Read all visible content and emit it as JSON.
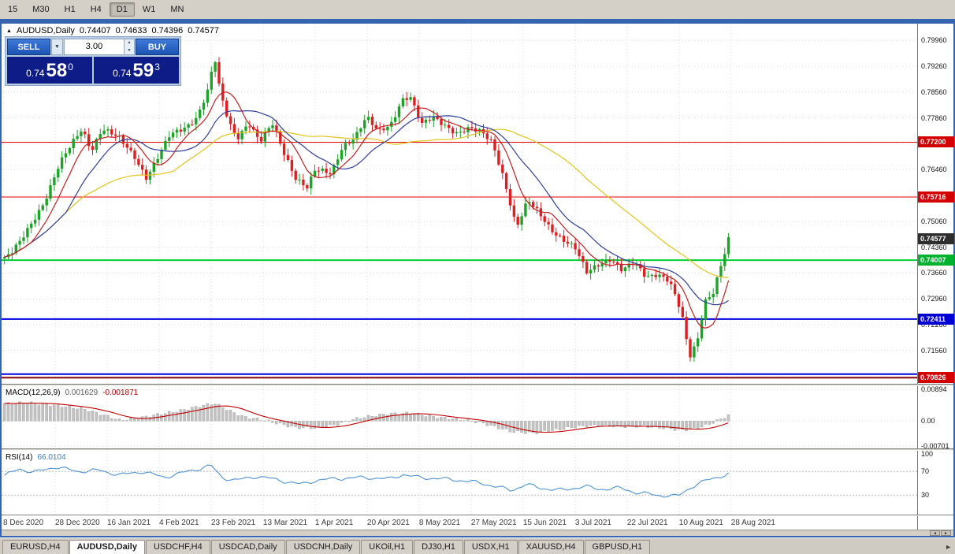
{
  "colors": {
    "up": "#1ca427",
    "down": "#dc2020",
    "ma_fast": "#c81e1e",
    "ma_mid": "#2f3f9f",
    "ma_slow": "#e3c51c",
    "macd_hist": "#c2c2c2",
    "macd_hist_edge": "#a6a6a6",
    "macd_signal": "#c00000",
    "rsi_line": "#4f93d1",
    "grid": "#dadada",
    "window_border": "#3565b0"
  },
  "toolbar": {
    "timeframes": [
      "15",
      "M30",
      "H1",
      "H4",
      "D1",
      "W1",
      "MN"
    ],
    "active": "D1"
  },
  "chart_header": {
    "symbol": "AUDUSD,Daily",
    "open": "0.74407",
    "high": "0.74633",
    "low": "0.74396",
    "close": "0.74577"
  },
  "trade_panel": {
    "sell_label": "SELL",
    "buy_label": "BUY",
    "volume": "3.00",
    "sell_price": {
      "prefix": "0.74",
      "big": "58",
      "sup": "0"
    },
    "buy_price": {
      "prefix": "0.74",
      "big": "59",
      "sup": "3"
    }
  },
  "icons": {
    "dropdown": "▼",
    "spin_up": "▲",
    "spin_down": "▼",
    "scroll_left": "◄",
    "scroll_right": "►",
    "tab_scroll": "►",
    "marker": "▲"
  },
  "price_axis": {
    "ticks": [
      "0.79960",
      "0.79260",
      "0.78560",
      "0.77860",
      "0.77160",
      "0.76460",
      "0.75760",
      "0.75060",
      "0.74360",
      "0.73660",
      "0.72960",
      "0.72260",
      "0.71560",
      "0.70860"
    ],
    "badges": [
      {
        "label": "0.77200",
        "price": 0.772,
        "bg": "#d40000"
      },
      {
        "label": "0.75716",
        "price": 0.75716,
        "bg": "#d40000"
      },
      {
        "label": "0.74577",
        "price": 0.74577,
        "bg": "#2e2e2e"
      },
      {
        "label": "0.74007",
        "price": 0.74007,
        "bg": "#00b22d"
      },
      {
        "label": "0.72411",
        "price": 0.72411,
        "bg": "#0000d4"
      },
      {
        "label": "0.70826",
        "price": 0.70826,
        "bg": "#d40000"
      }
    ]
  },
  "levels": [
    {
      "price": 0.772,
      "color": "#e00000",
      "width": 1
    },
    {
      "price": 0.75716,
      "color": "#e00000",
      "width": 1
    },
    {
      "price": 0.74007,
      "color": "#00cc33",
      "width": 2
    },
    {
      "price": 0.72411,
      "color": "#0000e0",
      "width": 2
    },
    {
      "price": 0.7092,
      "color": "#0000e0",
      "width": 2
    },
    {
      "price": 0.70826,
      "color": "#8b0000",
      "width": 2
    }
  ],
  "dates": [
    "8 Dec 2020",
    "28 Dec 2020",
    "16 Jan 2021",
    "4 Feb 2021",
    "23 Feb 2021",
    "13 Mar 2021",
    "1 Apr 2021",
    "20 Apr 2021",
    "8 May 2021",
    "27 May 2021",
    "15 Jun 2021",
    "3 Jul 2021",
    "22 Jul 2021",
    "10 Aug 2021",
    "28 Aug 2021"
  ],
  "macd": {
    "label": "MACD(12,26,9)",
    "value_main": "0.001629",
    "value_signal": "-0.001871",
    "axis_labels": [
      {
        "text": "0.00894",
        "value": 0.00894
      },
      {
        "text": "0.00",
        "value": 0
      },
      {
        "text": "-0.00701",
        "value": -0.00701
      }
    ]
  },
  "rsi": {
    "label": "RSI(14)",
    "value": "66.0104",
    "axis_labels": [
      {
        "text": "100",
        "value": 100
      },
      {
        "text": "70",
        "value": 70
      },
      {
        "text": "30",
        "value": 30
      }
    ],
    "levels": [
      70,
      30
    ]
  },
  "tabs": [
    {
      "label": "EURUSD,H4",
      "active": false
    },
    {
      "label": "AUDUSD,Daily",
      "active": true
    },
    {
      "label": "USDCHF,H4",
      "active": false
    },
    {
      "label": "USDCAD,Daily",
      "active": false
    },
    {
      "label": "USDCNH,Daily",
      "active": false
    },
    {
      "label": "UKOil,H1",
      "active": false
    },
    {
      "label": "DJ30,H1",
      "active": false
    },
    {
      "label": "USDX,H1",
      "active": false
    },
    {
      "label": "XAUUSD,H4",
      "active": false
    },
    {
      "label": "GBPUSD,H1",
      "active": false
    }
  ],
  "chart_data": {
    "type": "candlestick",
    "symbol": "AUDUSD",
    "timeframe": "Daily",
    "visible_price_range": [
      0.7066,
      0.8041
    ],
    "candle_count": 190,
    "data_width_frac": 0.795,
    "macd_range": [
      -0.0077,
      0.0098
    ],
    "rsi_range": [
      -3,
      105
    ],
    "price_path": [
      [
        0.0,
        0.7405
      ],
      [
        0.01,
        0.742
      ],
      [
        0.022,
        0.745
      ],
      [
        0.04,
        0.751
      ],
      [
        0.055,
        0.756
      ],
      [
        0.076,
        0.766
      ],
      [
        0.095,
        0.772
      ],
      [
        0.107,
        0.7756
      ],
      [
        0.12,
        0.77
      ],
      [
        0.135,
        0.7758
      ],
      [
        0.158,
        0.773
      ],
      [
        0.18,
        0.768
      ],
      [
        0.196,
        0.7626
      ],
      [
        0.212,
        0.768
      ],
      [
        0.228,
        0.7736
      ],
      [
        0.25,
        0.776
      ],
      [
        0.266,
        0.779
      ],
      [
        0.282,
        0.7868
      ],
      [
        0.29,
        0.7952
      ],
      [
        0.298,
        0.785
      ],
      [
        0.31,
        0.7772
      ],
      [
        0.321,
        0.773
      ],
      [
        0.337,
        0.7776
      ],
      [
        0.353,
        0.7722
      ],
      [
        0.37,
        0.7768
      ],
      [
        0.386,
        0.769
      ],
      [
        0.402,
        0.7626
      ],
      [
        0.418,
        0.76
      ],
      [
        0.429,
        0.7645
      ],
      [
        0.451,
        0.7632
      ],
      [
        0.467,
        0.771
      ],
      [
        0.484,
        0.7736
      ],
      [
        0.5,
        0.7788
      ],
      [
        0.516,
        0.7746
      ],
      [
        0.533,
        0.7766
      ],
      [
        0.549,
        0.7838
      ],
      [
        0.56,
        0.7846
      ],
      [
        0.576,
        0.7766
      ],
      [
        0.592,
        0.7786
      ],
      [
        0.609,
        0.7766
      ],
      [
        0.625,
        0.7746
      ],
      [
        0.641,
        0.7756
      ],
      [
        0.658,
        0.7746
      ],
      [
        0.674,
        0.772
      ],
      [
        0.69,
        0.7622
      ],
      [
        0.707,
        0.7488
      ],
      [
        0.723,
        0.756
      ],
      [
        0.739,
        0.7526
      ],
      [
        0.755,
        0.7486
      ],
      [
        0.772,
        0.7456
      ],
      [
        0.788,
        0.7432
      ],
      [
        0.804,
        0.7366
      ],
      [
        0.821,
        0.7392
      ],
      [
        0.837,
        0.7406
      ],
      [
        0.853,
        0.7372
      ],
      [
        0.87,
        0.7392
      ],
      [
        0.886,
        0.7356
      ],
      [
        0.902,
        0.7366
      ],
      [
        0.918,
        0.7346
      ],
      [
        0.935,
        0.7256
      ],
      [
        0.946,
        0.7136
      ],
      [
        0.957,
        0.7182
      ],
      [
        0.967,
        0.7292
      ],
      [
        0.978,
        0.7312
      ],
      [
        0.989,
        0.7382
      ],
      [
        1.0,
        0.7455
      ]
    ],
    "macd_hist_path": [
      [
        0.0,
        0.0048
      ],
      [
        0.03,
        0.0052
      ],
      [
        0.07,
        0.0044
      ],
      [
        0.11,
        0.0034
      ],
      [
        0.145,
        0.0012
      ],
      [
        0.16,
        0.0002
      ],
      [
        0.19,
        0.001
      ],
      [
        0.21,
        0.0018
      ],
      [
        0.24,
        0.0028
      ],
      [
        0.27,
        0.0042
      ],
      [
        0.29,
        0.005
      ],
      [
        0.31,
        0.003
      ],
      [
        0.33,
        0.0012
      ],
      [
        0.36,
        0.0002
      ],
      [
        0.38,
        -0.0008
      ],
      [
        0.4,
        -0.0018
      ],
      [
        0.43,
        -0.002
      ],
      [
        0.46,
        -0.001
      ],
      [
        0.48,
        0.0004
      ],
      [
        0.5,
        0.0012
      ],
      [
        0.53,
        0.002
      ],
      [
        0.56,
        0.0022
      ],
      [
        0.58,
        0.0016
      ],
      [
        0.6,
        0.001
      ],
      [
        0.62,
        0.0006
      ],
      [
        0.64,
        0.0002
      ],
      [
        0.66,
        -0.0006
      ],
      [
        0.68,
        -0.0018
      ],
      [
        0.7,
        -0.003
      ],
      [
        0.73,
        -0.0034
      ],
      [
        0.76,
        -0.0026
      ],
      [
        0.79,
        -0.0016
      ],
      [
        0.82,
        -0.0012
      ],
      [
        0.85,
        -0.0016
      ],
      [
        0.88,
        -0.0014
      ],
      [
        0.91,
        -0.002
      ],
      [
        0.935,
        -0.0026
      ],
      [
        0.955,
        -0.0022
      ],
      [
        0.975,
        -0.0008
      ],
      [
        1.0,
        0.0016
      ]
    ],
    "rsi_path": [
      [
        0.0,
        62
      ],
      [
        0.02,
        75
      ],
      [
        0.04,
        68
      ],
      [
        0.07,
        78
      ],
      [
        0.1,
        70
      ],
      [
        0.13,
        72
      ],
      [
        0.16,
        64
      ],
      [
        0.19,
        70
      ],
      [
        0.22,
        60
      ],
      [
        0.26,
        72
      ],
      [
        0.285,
        80
      ],
      [
        0.3,
        60
      ],
      [
        0.32,
        55
      ],
      [
        0.35,
        62
      ],
      [
        0.38,
        55
      ],
      [
        0.41,
        48
      ],
      [
        0.43,
        55
      ],
      [
        0.46,
        58
      ],
      [
        0.5,
        60
      ],
      [
        0.53,
        57
      ],
      [
        0.55,
        65
      ],
      [
        0.57,
        60
      ],
      [
        0.6,
        58
      ],
      [
        0.63,
        55
      ],
      [
        0.66,
        50
      ],
      [
        0.7,
        38
      ],
      [
        0.72,
        48
      ],
      [
        0.74,
        42
      ],
      [
        0.77,
        38
      ],
      [
        0.8,
        45
      ],
      [
        0.82,
        40
      ],
      [
        0.85,
        42
      ],
      [
        0.87,
        35
      ],
      [
        0.9,
        30
      ],
      [
        0.93,
        28
      ],
      [
        0.95,
        45
      ],
      [
        0.97,
        55
      ],
      [
        1.0,
        66
      ]
    ]
  }
}
